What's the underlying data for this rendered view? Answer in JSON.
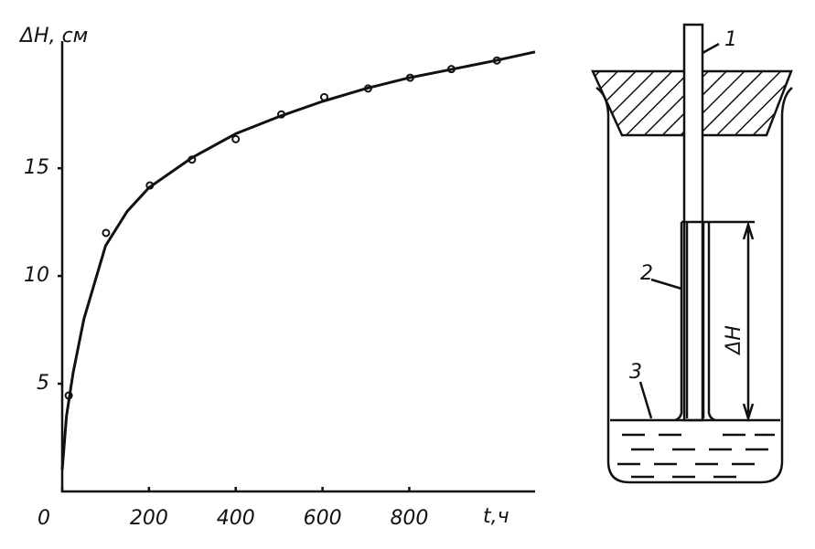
{
  "chart_data": {
    "type": "scatter",
    "y_label": "ΔH, см",
    "x_label": "t,ч",
    "xlim": [
      0,
      1090
    ],
    "ylim": [
      0,
      20.9
    ],
    "xticks": [
      0,
      200,
      400,
      600,
      800
    ],
    "yticks": [
      5,
      10,
      15
    ],
    "series": [
      {
        "type": "scatter",
        "color": "#111111",
        "x": [
          15,
          101,
          202,
          299,
          400,
          505,
          604,
          705,
          802,
          897,
          1002
        ],
        "values": [
          4.45,
          12.0,
          14.2,
          15.4,
          16.35,
          17.5,
          18.3,
          18.7,
          19.2,
          19.6,
          20.0
        ]
      },
      {
        "type": "line",
        "color": "#111111",
        "x": [
          0,
          10,
          25,
          50,
          100,
          150,
          200,
          300,
          400,
          500,
          600,
          700,
          800,
          900,
          1000,
          1090
        ],
        "values": [
          1,
          3.5,
          5.5,
          8,
          11.4,
          13.0,
          14.1,
          15.5,
          16.6,
          17.4,
          18.1,
          18.7,
          19.2,
          19.6,
          20.0,
          20.4
        ]
      }
    ]
  },
  "diagram": {
    "labels": [
      "1",
      "2",
      "3",
      "ΔH"
    ]
  }
}
